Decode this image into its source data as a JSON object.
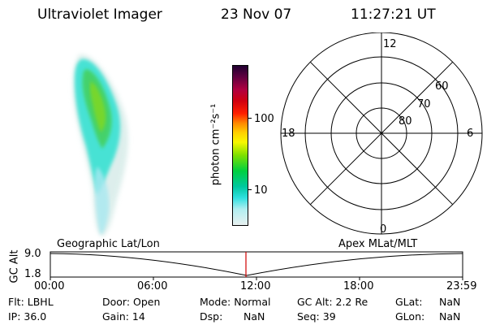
{
  "header": {
    "title": "Ultraviolet Imager",
    "date": "23 Nov 07",
    "time": "11:27:21 UT"
  },
  "colorbar": {
    "label": "photon cm⁻²s⁻¹",
    "ticks": [
      "100",
      "10"
    ]
  },
  "polar": {
    "lat_labels": [
      "60",
      "70",
      "80"
    ],
    "mlt_labels": [
      "12",
      "18",
      "6",
      "0"
    ]
  },
  "timeline": {
    "ylabel": "GC Alt",
    "yticks": [
      "9.0",
      "1.8"
    ],
    "left_caption": "Geographic Lat/Lon",
    "right_caption": "Apex MLat/MLT",
    "xticks": [
      "00:00",
      "06:00",
      "12:00",
      "18:00",
      "23:59"
    ],
    "marker_color": "#d00000"
  },
  "info": {
    "row1": [
      "Flt: LBHL",
      "Door: Open",
      "Mode: Normal",
      "GC Alt: 2.2 Re",
      "GLat:",
      "NaN"
    ],
    "row2": [
      "IP: 36.0",
      "Gain: 14",
      "Dsp:",
      "NaN",
      "Seq: 39",
      "GLon:",
      "NaN"
    ]
  }
}
